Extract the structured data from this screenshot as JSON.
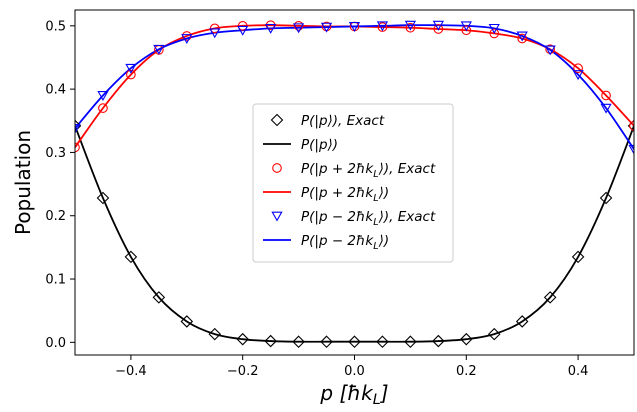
{
  "chart_data": {
    "type": "line",
    "xlabel": "p [ħk_L]",
    "ylabel": "Population",
    "xlim": [
      -0.5,
      0.5
    ],
    "ylim": [
      -0.02,
      0.525
    ],
    "xticks": [
      -0.4,
      -0.2,
      0.0,
      0.2,
      0.4
    ],
    "xtick_labels": [
      "−0.4",
      "−0.2",
      "0.0",
      "0.2",
      "0.4"
    ],
    "yticks": [
      0.0,
      0.1,
      0.2,
      0.3,
      0.4,
      0.5
    ],
    "ytick_labels": [
      "0.0",
      "0.1",
      "0.2",
      "0.3",
      "0.4",
      "0.5"
    ],
    "grid": false,
    "legend_position": "center",
    "x": [
      -0.5,
      -0.45,
      -0.4,
      -0.35,
      -0.3,
      -0.25,
      -0.2,
      -0.15,
      -0.1,
      -0.05,
      0.0,
      0.05,
      0.1,
      0.15,
      0.2,
      0.25,
      0.3,
      0.35,
      0.4,
      0.45,
      0.5
    ],
    "series": [
      {
        "name": "P(|p⟩), Exact",
        "kind": "markers",
        "marker": "diamond",
        "color": "#000000",
        "values": [
          0.342,
          0.228,
          0.135,
          0.071,
          0.033,
          0.013,
          0.005,
          0.002,
          0.001,
          0.001,
          0.001,
          0.001,
          0.001,
          0.002,
          0.005,
          0.013,
          0.033,
          0.071,
          0.135,
          0.228,
          0.342
        ]
      },
      {
        "name": "P(|p⟩)",
        "kind": "line",
        "color": "#000000",
        "values": [
          0.342,
          0.228,
          0.135,
          0.071,
          0.033,
          0.013,
          0.005,
          0.002,
          0.001,
          0.001,
          0.001,
          0.001,
          0.001,
          0.002,
          0.005,
          0.013,
          0.033,
          0.071,
          0.135,
          0.228,
          0.342
        ]
      },
      {
        "name": "P(|p + 2ħk_L⟩), Exact",
        "kind": "markers",
        "marker": "circle",
        "color": "#ff0000",
        "values": [
          0.308,
          0.37,
          0.423,
          0.462,
          0.484,
          0.496,
          0.5,
          0.501,
          0.5,
          0.499,
          0.499,
          0.498,
          0.497,
          0.495,
          0.493,
          0.488,
          0.48,
          0.463,
          0.433,
          0.39,
          0.342
        ]
      },
      {
        "name": "P(|p + 2ħk_L⟩)",
        "kind": "line",
        "color": "#ff0000",
        "values": [
          0.308,
          0.37,
          0.423,
          0.462,
          0.484,
          0.496,
          0.5,
          0.501,
          0.5,
          0.499,
          0.499,
          0.498,
          0.497,
          0.495,
          0.493,
          0.488,
          0.48,
          0.463,
          0.433,
          0.39,
          0.342
        ]
      },
      {
        "name": "P(|p − 2ħk_L⟩), Exact",
        "kind": "markers",
        "marker": "triangle-down",
        "color": "#0000ff",
        "values": [
          0.338,
          0.39,
          0.433,
          0.463,
          0.48,
          0.489,
          0.493,
          0.496,
          0.497,
          0.498,
          0.499,
          0.5,
          0.501,
          0.501,
          0.5,
          0.496,
          0.484,
          0.462,
          0.423,
          0.37,
          0.305
        ]
      },
      {
        "name": "P(|p − 2ħk_L⟩)",
        "kind": "line",
        "color": "#0000ff",
        "values": [
          0.338,
          0.39,
          0.433,
          0.463,
          0.48,
          0.489,
          0.493,
          0.496,
          0.497,
          0.498,
          0.499,
          0.5,
          0.501,
          0.501,
          0.5,
          0.496,
          0.484,
          0.462,
          0.423,
          0.37,
          0.305
        ]
      }
    ]
  }
}
